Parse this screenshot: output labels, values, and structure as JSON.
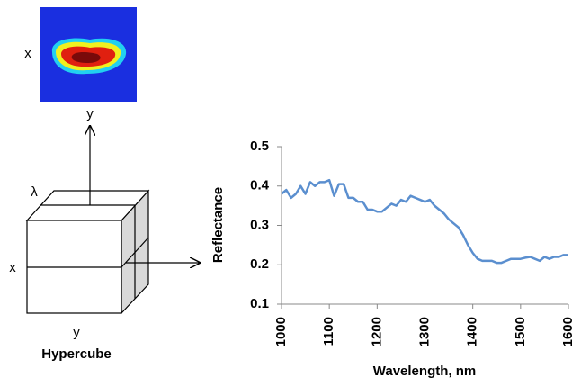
{
  "diagram": {
    "image_x_label": "x",
    "image_y_label": "y",
    "cube_lambda_label": "λ",
    "cube_x_label": "x",
    "cube_y_label": "y",
    "caption": "Hypercube"
  },
  "chart_data": {
    "type": "line",
    "x_label": "Wavelength, nm",
    "y_label": "Reflectance",
    "x": [
      1000,
      1010,
      1020,
      1030,
      1040,
      1050,
      1060,
      1070,
      1080,
      1090,
      1100,
      1110,
      1120,
      1130,
      1140,
      1150,
      1160,
      1170,
      1180,
      1190,
      1200,
      1210,
      1220,
      1230,
      1240,
      1250,
      1260,
      1270,
      1280,
      1290,
      1300,
      1310,
      1320,
      1330,
      1340,
      1350,
      1360,
      1370,
      1380,
      1390,
      1400,
      1410,
      1420,
      1430,
      1440,
      1450,
      1460,
      1470,
      1480,
      1490,
      1500,
      1510,
      1520,
      1530,
      1540,
      1550,
      1560,
      1570,
      1580,
      1590,
      1600
    ],
    "series": [
      {
        "color": "#5b8fcf",
        "values": [
          0.38,
          0.39,
          0.37,
          0.38,
          0.4,
          0.38,
          0.41,
          0.4,
          0.41,
          0.41,
          0.415,
          0.375,
          0.405,
          0.405,
          0.37,
          0.37,
          0.36,
          0.36,
          0.34,
          0.34,
          0.335,
          0.335,
          0.345,
          0.355,
          0.35,
          0.365,
          0.36,
          0.375,
          0.37,
          0.365,
          0.36,
          0.365,
          0.35,
          0.34,
          0.33,
          0.315,
          0.305,
          0.295,
          0.275,
          0.25,
          0.23,
          0.215,
          0.21,
          0.21,
          0.21,
          0.205,
          0.205,
          0.21,
          0.215,
          0.215,
          0.215,
          0.218,
          0.22,
          0.215,
          0.21,
          0.22,
          0.215,
          0.22,
          0.22,
          0.225,
          0.225
        ]
      }
    ],
    "xlim": [
      1000,
      1600
    ],
    "xticks": [
      1000,
      1100,
      1200,
      1300,
      1400,
      1500,
      1600
    ],
    "ylim": [
      0.1,
      0.5
    ],
    "yticks": [
      0.1,
      0.2,
      0.3,
      0.4,
      0.5
    ],
    "grid": false
  }
}
